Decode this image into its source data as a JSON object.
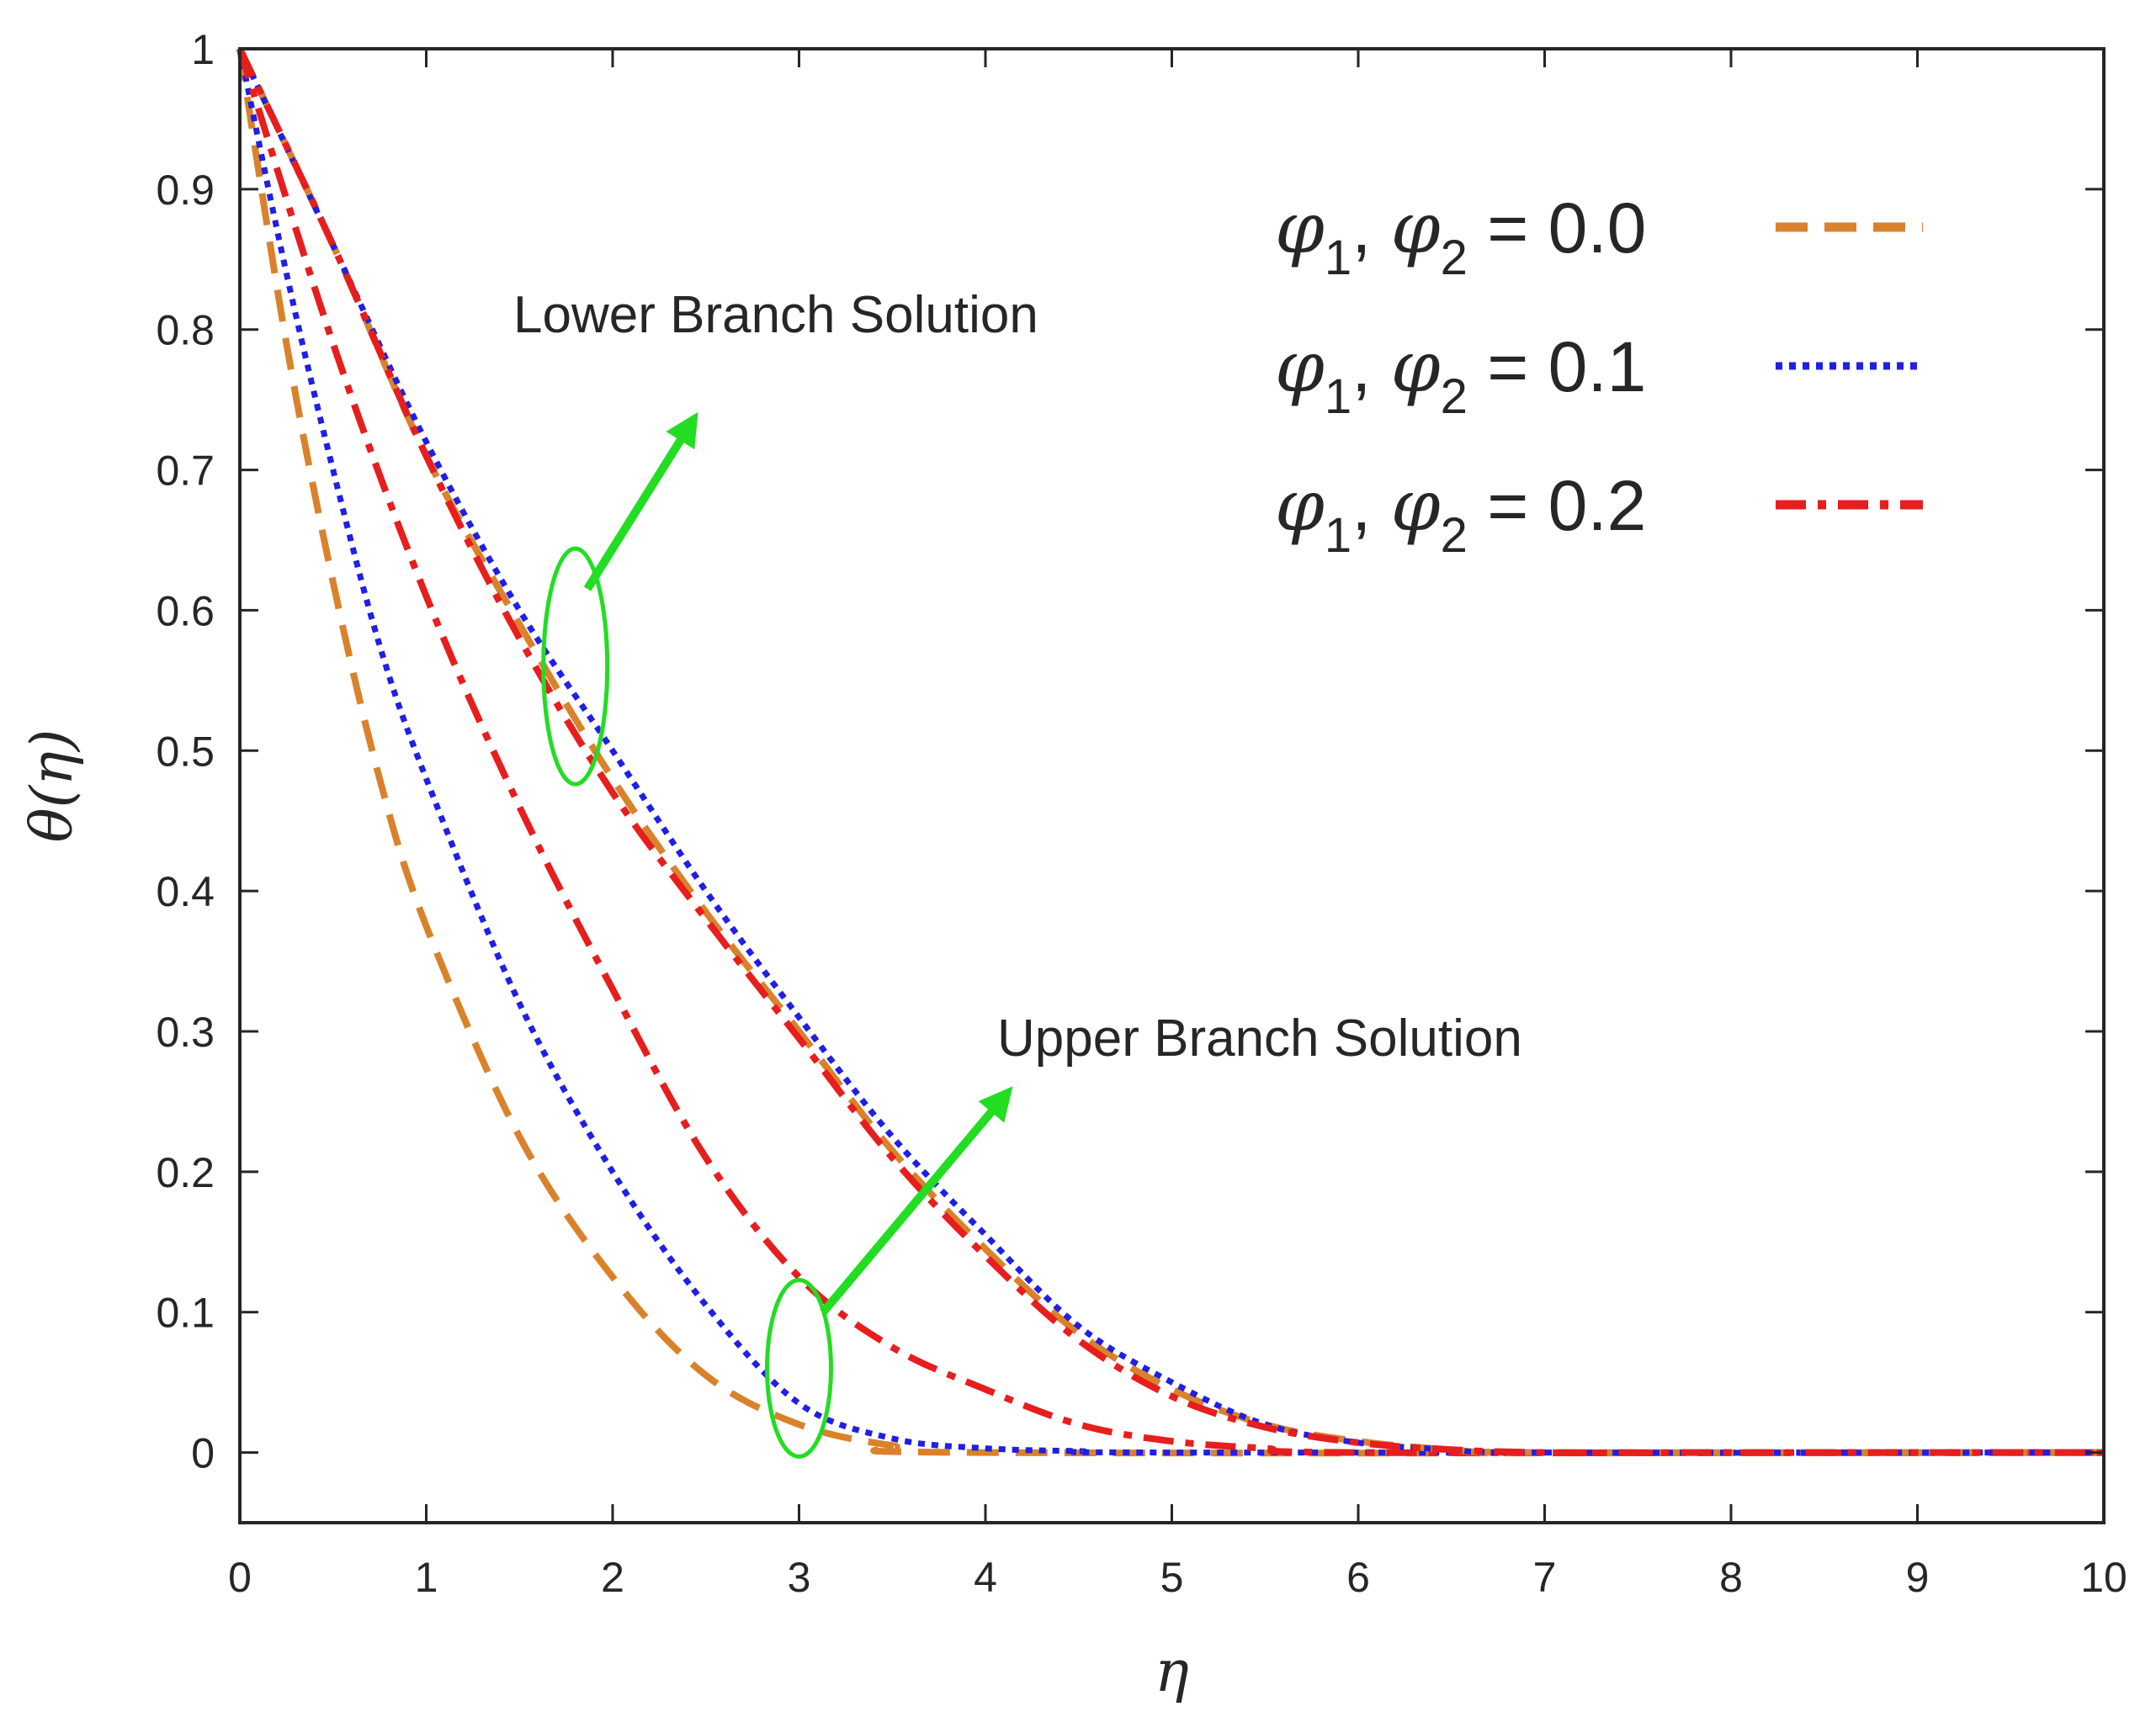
{
  "chart_data": {
    "type": "line",
    "xlabel": "η",
    "ylabel": "θ(η)",
    "xlim": [
      0,
      10
    ],
    "ylim": [
      -0.05,
      1
    ],
    "x_ticks": [
      0,
      1,
      2,
      3,
      4,
      5,
      6,
      7,
      8,
      9,
      10
    ],
    "y_ticks": [
      0,
      0.1,
      0.2,
      0.3,
      0.4,
      0.5,
      0.6,
      0.7,
      0.8,
      0.9,
      1
    ],
    "grid": false,
    "legend_position": "top-right",
    "annotations": [
      {
        "text": "Lower Branch Solution",
        "target_x": 1.8,
        "target_y": 0.56
      },
      {
        "text": "Upper Branch Solution",
        "target_x": 3.0,
        "target_y": 0.06
      }
    ],
    "series": [
      {
        "name": "φ1, φ2 = 0.0",
        "legend_sym": "φ",
        "legend_value": "0.0",
        "branch": "upper",
        "color": "#d9822b",
        "style": "dashed",
        "x": [
          0,
          0.25,
          0.5,
          0.75,
          1,
          1.5,
          2,
          2.5,
          3,
          3.5,
          4
        ],
        "y": [
          1,
          0.79,
          0.62,
          0.48,
          0.375,
          0.225,
          0.125,
          0.055,
          0.02,
          0.005,
          0
        ]
      },
      {
        "name": "φ1, φ2 = 0.1",
        "legend_sym": "φ",
        "legend_value": "0.1",
        "branch": "upper",
        "color": "#1f1fe6",
        "style": "dotted",
        "x": [
          0,
          0.25,
          0.5,
          0.75,
          1,
          1.5,
          2,
          2.5,
          3,
          3.5,
          4,
          4.5,
          5
        ],
        "y": [
          1,
          0.84,
          0.7,
          0.575,
          0.48,
          0.32,
          0.2,
          0.105,
          0.035,
          0.01,
          0.003,
          0.001,
          0
        ]
      },
      {
        "name": "φ1, φ2 = 0.2",
        "legend_sym": "φ",
        "legend_value": "0.2",
        "branch": "upper",
        "color": "#e61e1e",
        "style": "dashdot",
        "x": [
          0,
          0.5,
          1,
          1.5,
          2,
          2.5,
          3,
          3.5,
          4,
          4.5,
          5,
          5.5,
          6
        ],
        "y": [
          1,
          0.79,
          0.61,
          0.46,
          0.33,
          0.21,
          0.125,
          0.075,
          0.045,
          0.02,
          0.008,
          0.003,
          0
        ]
      },
      {
        "name": "φ1, φ2 = 0.0",
        "branch": "lower",
        "color": "#d9822b",
        "style": "dashed",
        "x": [
          0,
          0.5,
          1,
          1.5,
          2,
          2.5,
          3,
          3.5,
          4,
          4.5,
          5,
          5.5,
          6,
          6.5,
          7
        ],
        "y": [
          1,
          0.86,
          0.71,
          0.59,
          0.48,
          0.385,
          0.3,
          0.215,
          0.145,
          0.085,
          0.045,
          0.02,
          0.008,
          0.002,
          0
        ]
      },
      {
        "name": "φ1, φ2 = 0.1",
        "branch": "lower",
        "color": "#1f1fe6",
        "style": "dotted",
        "x": [
          0,
          0.5,
          1,
          1.5,
          2,
          2.5,
          3,
          3.5,
          4,
          4.5,
          5,
          5.5,
          6,
          6.5,
          7
        ],
        "y": [
          1,
          0.86,
          0.72,
          0.6,
          0.5,
          0.4,
          0.31,
          0.225,
          0.155,
          0.09,
          0.05,
          0.02,
          0.007,
          0.002,
          0
        ]
      },
      {
        "name": "φ1, φ2 = 0.2",
        "branch": "lower",
        "color": "#e61e1e",
        "style": "dashdot",
        "x": [
          0,
          0.5,
          1,
          1.5,
          2,
          2.5,
          3,
          3.5,
          4,
          4.5,
          5,
          5.5,
          6,
          6.5,
          7,
          8,
          9,
          10
        ],
        "y": [
          1,
          0.86,
          0.71,
          0.58,
          0.47,
          0.38,
          0.295,
          0.21,
          0.14,
          0.08,
          0.04,
          0.018,
          0.007,
          0.002,
          0,
          0,
          0,
          0
        ]
      }
    ]
  }
}
